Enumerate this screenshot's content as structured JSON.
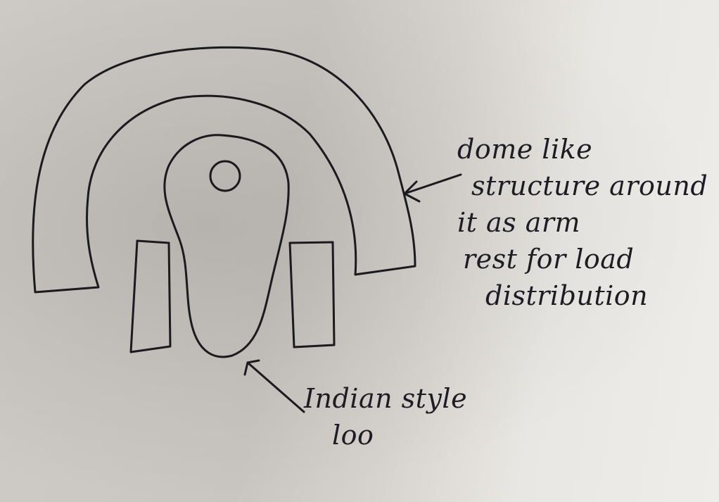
{
  "annotations": {
    "dome": {
      "lines": [
        "dome like",
        "structure around",
        "it as arm",
        "rest for load",
        "distribution"
      ]
    },
    "loo": {
      "lines": [
        "Indian style",
        "loo"
      ]
    }
  },
  "colors": {
    "ink": "#1a1a1f",
    "paper_light": "#eeedea",
    "paper_dark": "#c9c5c0"
  }
}
